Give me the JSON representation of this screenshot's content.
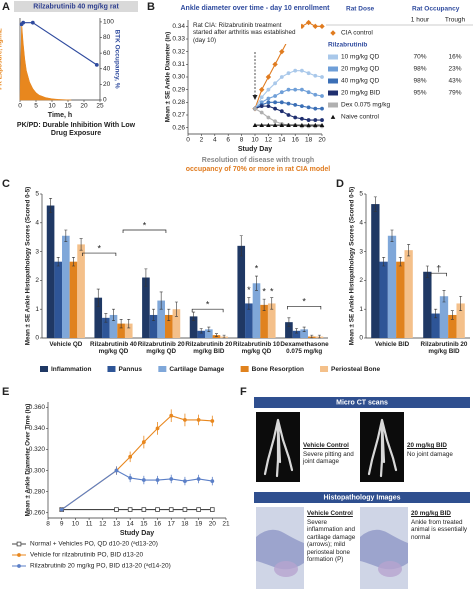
{
  "chart_data": [
    {
      "type": "line",
      "panel": "A",
      "title": "Rilzabrutinib 40 mg/kg rat",
      "subtitle": "PK/PD: Durable Inhibition With Low Drug Exposure",
      "xlabel": "Time, h",
      "ylabel": "PK Exposure, ng/mL",
      "y2label": "BTK Occupancy, %",
      "xlim": [
        0,
        25
      ],
      "xticks": [
        0,
        5,
        10,
        15,
        20,
        25
      ],
      "ylim": [
        0,
        1000
      ],
      "y2lim": [
        0,
        105
      ],
      "y2ticks": [
        0,
        20,
        40,
        60,
        80,
        100
      ],
      "series": [
        {
          "color": "#e8871e",
          "fill": true,
          "x": [
            0,
            0.5,
            1,
            1.5,
            2,
            3,
            4,
            5,
            6,
            8,
            10,
            12,
            16
          ],
          "values": [
            0,
            950,
            700,
            500,
            360,
            220,
            140,
            90,
            60,
            30,
            15,
            8,
            0
          ]
        },
        {
          "color": "#2e4a9e",
          "axis": "y2",
          "marker": "circle",
          "x": [
            0.5,
            1,
            4,
            24
          ],
          "values": [
            97,
            99,
            99,
            45
          ]
        }
      ]
    },
    {
      "type": "line",
      "panel": "B",
      "title": "Ankle diameter over time - day 10 enrollment",
      "annotation": "Rat CIA: Rilzabrutinib treatment started after arthritis was established (day 10)",
      "xlabel": "Study Day",
      "ylabel": "Mean ± SE Ankle Diameter (in)",
      "conclusion": [
        "Resolution of disease with trough",
        "occupancy of 70% or more in rat CIA model"
      ],
      "legend_headers": [
        "Rat Dose",
        "Rat Occupancy",
        "1 hour",
        "Trough"
      ],
      "legend_group": "Rilzabrutinib",
      "xlim": [
        0,
        20
      ],
      "xticks": [
        0,
        2,
        4,
        6,
        8,
        10,
        12,
        14,
        16,
        18,
        20
      ],
      "ylim": [
        0.255,
        0.345
      ],
      "yticks": [
        0.26,
        0.27,
        0.28,
        0.29,
        {
          "value": 0.3,
          "label": "0.30"
        },
        0.31,
        0.32,
        0.33,
        0.34
      ],
      "x": [
        10,
        11,
        12,
        13,
        14,
        15,
        16,
        17,
        18,
        19,
        20
      ],
      "series": [
        {
          "name": "CIA control",
          "color": "#e07b1f",
          "marker": "diamond",
          "values": [
            0.275,
            0.29,
            0.3,
            0.31,
            0.32,
            0.33,
            0.335,
            0.34,
            0.343,
            0.34,
            0.34
          ]
        },
        {
          "name": "10 mg/kg QD",
          "color": "#a9c8ea",
          "marker": "circle",
          "occupancy": [
            "70%",
            "16%"
          ],
          "values": [
            0.275,
            0.284,
            0.29,
            0.295,
            0.3,
            0.303,
            0.305,
            0.305,
            0.303,
            0.301,
            0.3
          ]
        },
        {
          "name": "20 mg/kg QD",
          "color": "#6f9fd8",
          "marker": "circle",
          "occupancy": [
            "98%",
            "23%"
          ],
          "values": [
            0.275,
            0.28,
            0.283,
            0.285,
            0.288,
            0.29,
            0.29,
            0.29,
            0.288,
            0.286,
            0.285
          ]
        },
        {
          "name": "40 mg/kg QD",
          "color": "#3b6fb6",
          "marker": "circle",
          "occupancy": [
            "98%",
            "43%"
          ],
          "values": [
            0.275,
            0.278,
            0.28,
            0.28,
            0.28,
            0.279,
            0.278,
            0.277,
            0.276,
            0.275,
            0.275
          ]
        },
        {
          "name": "20 mg/kg BID",
          "color": "#1f2f6f",
          "marker": "circle",
          "occupancy": [
            "95%",
            "79%"
          ],
          "values": [
            0.275,
            0.277,
            0.277,
            0.275,
            0.273,
            0.27,
            0.268,
            0.267,
            0.266,
            0.266,
            0.266
          ]
        },
        {
          "name": "Dex 0.075 mg/kg",
          "color": "#b0b0b0",
          "marker": "circle",
          "values": [
            0.275,
            0.272,
            0.268,
            0.265,
            0.263,
            0.262,
            0.262,
            0.261,
            0.261,
            0.261,
            0.261
          ]
        },
        {
          "name": "Naive control",
          "color": "#111111",
          "marker": "triangle",
          "values": [
            0.262,
            0.262,
            0.262,
            0.262,
            0.262,
            0.262,
            0.262,
            0.262,
            0.262,
            0.262,
            0.262
          ]
        }
      ]
    },
    {
      "type": "bar",
      "panel": "C",
      "ylabel": "Mean ± SE Ankle Histopathology Scores (Scored 0-5)",
      "ylim": [
        0,
        5
      ],
      "yticks": [
        0,
        1,
        2,
        3,
        4,
        5
      ],
      "categories": [
        "Vehicle QD",
        "Rilzabrutinib 40 mg/kg QD",
        "Rilzabrutinib 20 mg/kg QD",
        "Rilzabrutinib 20 mg/kg BID",
        "Rilzabrutinib 10 mg/kg QD",
        "Dexamethasone 0.075 mg/kg"
      ],
      "annotations": [
        "*",
        "*",
        "*",
        "*",
        "*",
        "*",
        "*",
        "*"
      ],
      "series": [
        {
          "name": "Inflammation",
          "color": "#1f3864",
          "values": [
            4.6,
            1.4,
            2.1,
            0.75,
            3.2,
            0.55
          ],
          "errors": [
            0.25,
            0.3,
            0.3,
            0.15,
            0.35,
            0.15
          ]
        },
        {
          "name": "Pannus",
          "color": "#2e5597",
          "values": [
            2.65,
            0.7,
            0.8,
            0.25,
            1.2,
            0.25
          ],
          "errors": [
            0.15,
            0.15,
            0.2,
            0.08,
            0.2,
            0.08
          ]
        },
        {
          "name": "Cartilage Damage",
          "color": "#7fa7d9",
          "values": [
            3.55,
            0.8,
            1.3,
            0.3,
            1.9,
            0.3
          ],
          "errors": [
            0.2,
            0.2,
            0.3,
            0.08,
            0.25,
            0.08
          ]
        },
        {
          "name": "Bone Resorption",
          "color": "#e0821e",
          "values": [
            2.65,
            0.5,
            0.8,
            0.1,
            1.15,
            0.05
          ],
          "errors": [
            0.15,
            0.15,
            0.2,
            0.05,
            0.2,
            0.05
          ]
        },
        {
          "name": "Periosteal Bone",
          "color": "#f4c08a",
          "values": [
            3.25,
            0.5,
            1.0,
            0.05,
            1.2,
            0.05
          ],
          "errors": [
            0.2,
            0.15,
            0.25,
            0.05,
            0.2,
            0.05
          ]
        }
      ]
    },
    {
      "type": "bar",
      "panel": "D",
      "ylabel": "Mean ± SE Ankle Histopathology Scores (Scored 0-5)",
      "ylim": [
        0,
        5
      ],
      "yticks": [
        0,
        1,
        2,
        3,
        4,
        5
      ],
      "categories": [
        "Vehicle BID",
        "Rilzabrutinib 20 mg/kg BID"
      ],
      "annotations": [
        "†"
      ],
      "series": [
        {
          "color": "#1f3864",
          "values": [
            4.65,
            2.3
          ],
          "errors": [
            0.25,
            0.2
          ]
        },
        {
          "color": "#2e5597",
          "values": [
            2.65,
            0.85
          ],
          "errors": [
            0.15,
            0.15
          ]
        },
        {
          "color": "#7fa7d9",
          "values": [
            3.55,
            1.45
          ],
          "errors": [
            0.2,
            0.2
          ]
        },
        {
          "color": "#e0821e",
          "values": [
            2.65,
            0.8
          ],
          "errors": [
            0.15,
            0.15
          ]
        },
        {
          "color": "#f4c08a",
          "values": [
            3.05,
            1.2
          ],
          "errors": [
            0.2,
            0.25
          ]
        }
      ]
    },
    {
      "type": "line",
      "panel": "E",
      "xlabel": "Study Day",
      "ylabel": "Mean ± Ankle Diameter Over Time (in)",
      "xlim": [
        8,
        21
      ],
      "xticks": [
        8,
        9,
        10,
        11,
        12,
        13,
        14,
        15,
        16,
        17,
        18,
        19,
        20,
        21
      ],
      "ylim": [
        0.255,
        0.365
      ],
      "yticks": [
        {
          "value": 0.26,
          "label": "0.260"
        },
        {
          "value": 0.28,
          "label": "0.280"
        },
        {
          "value": 0.3,
          "label": "0.300"
        },
        {
          "value": 0.32,
          "label": "0.320"
        },
        {
          "value": 0.34,
          "label": "0.340"
        },
        {
          "value": 0.36,
          "label": "0.360"
        }
      ],
      "x": [
        9,
        13,
        14,
        15,
        16,
        17,
        18,
        19,
        20
      ],
      "series": [
        {
          "name": "Normal + Vehicles PO, QD d10-20 (ᵃd13-20)",
          "color": "#444444",
          "marker": "square-open",
          "values": [
            0.263,
            0.263,
            0.263,
            0.263,
            0.263,
            0.263,
            0.263,
            0.263,
            0.263
          ]
        },
        {
          "name": "Vehicle for rilzabrutinib PO, BID d13-20",
          "color": "#e8871e",
          "marker": "circle",
          "values": [
            0.263,
            0.3,
            0.313,
            0.327,
            0.34,
            0.352,
            0.348,
            0.348,
            0.347
          ],
          "errors": [
            0,
            0.004,
            0.005,
            0.006,
            0.006,
            0.006,
            0.006,
            0.005,
            0.005
          ]
        },
        {
          "name": "Rilzabrutinib 20 mg/kg PO, BID d13-20 (ᵃd14-20)",
          "color": "#5b7fc7",
          "marker": "circle",
          "values": [
            0.263,
            0.3,
            0.293,
            0.291,
            0.291,
            0.292,
            0.29,
            0.292,
            0.29
          ],
          "errors": [
            0,
            0.004,
            0.004,
            0.004,
            0.004,
            0.004,
            0.004,
            0.004,
            0.004
          ]
        }
      ]
    }
  ],
  "figure_f": {
    "panel": "F",
    "micro_ct": {
      "title": "Micro CT scans",
      "panels": [
        {
          "label": "Vehicle Control",
          "text": "Severe pitting and joint damage"
        },
        {
          "label": "20 mg/kg BID",
          "text": "No joint damage"
        }
      ]
    },
    "histopathology": {
      "title": "Histopathology Images",
      "panels": [
        {
          "label": "Vehicle Control",
          "text": "Severe inflammation and cartilage damage (arrows); mild periosteal bone formation (P)"
        },
        {
          "label": "20 mg/kg BID",
          "text": "Ankle from treated animal is essentially normal"
        }
      ]
    }
  }
}
